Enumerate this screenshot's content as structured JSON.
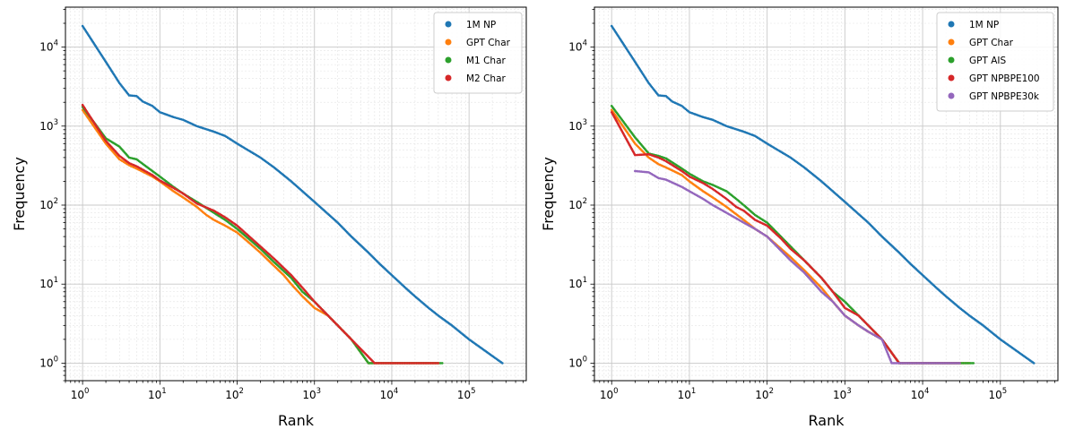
{
  "chart_data": [
    {
      "type": "scatter",
      "xscale": "log",
      "yscale": "log",
      "xlabel": "Rank",
      "ylabel": "Frequency",
      "xlim": [
        0.6,
        550000
      ],
      "ylim": [
        0.6,
        32000
      ],
      "xticks": [
        1,
        10,
        100,
        1000,
        10000,
        100000
      ],
      "xtick_labels": [
        {
          "base": "10",
          "exp": "0"
        },
        {
          "base": "10",
          "exp": "1"
        },
        {
          "base": "10",
          "exp": "2"
        },
        {
          "base": "10",
          "exp": "3"
        },
        {
          "base": "10",
          "exp": "4"
        },
        {
          "base": "10",
          "exp": "5"
        }
      ],
      "yticks": [
        1,
        10,
        100,
        1000,
        10000
      ],
      "ytick_labels": [
        {
          "base": "10",
          "exp": "0"
        },
        {
          "base": "10",
          "exp": "1"
        },
        {
          "base": "10",
          "exp": "2"
        },
        {
          "base": "10",
          "exp": "3"
        },
        {
          "base": "10",
          "exp": "4"
        }
      ],
      "grid": true,
      "legend_position": "top-right",
      "series": [
        {
          "name": "1M NP",
          "color": "#1f77b4",
          "points": [
            [
              1,
              18500
            ],
            [
              2,
              6500
            ],
            [
              3,
              3500
            ],
            [
              4,
              2450
            ],
            [
              5,
              2400
            ],
            [
              6,
              2050
            ],
            [
              8,
              1800
            ],
            [
              10,
              1500
            ],
            [
              15,
              1300
            ],
            [
              20,
              1200
            ],
            [
              30,
              1000
            ],
            [
              50,
              850
            ],
            [
              70,
              750
            ],
            [
              100,
              600
            ],
            [
              200,
              400
            ],
            [
              300,
              300
            ],
            [
              500,
              200
            ],
            [
              1000,
              110
            ],
            [
              2000,
              60
            ],
            [
              3000,
              40
            ],
            [
              5000,
              25
            ],
            [
              7000,
              18
            ],
            [
              10000,
              13
            ],
            [
              15000,
              9
            ],
            [
              20000,
              7
            ],
            [
              30000,
              5
            ],
            [
              40000,
              4
            ],
            [
              60000,
              3
            ],
            [
              100000,
              2
            ],
            [
              270000,
              1
            ]
          ]
        },
        {
          "name": "GPT Char",
          "color": "#ff7f0e",
          "points": [
            [
              1,
              1600
            ],
            [
              2,
              600
            ],
            [
              3,
              380
            ],
            [
              4,
              320
            ],
            [
              5,
              290
            ],
            [
              8,
              230
            ],
            [
              10,
              200
            ],
            [
              15,
              150
            ],
            [
              20,
              125
            ],
            [
              30,
              95
            ],
            [
              40,
              75
            ],
            [
              50,
              65
            ],
            [
              70,
              55
            ],
            [
              100,
              45
            ],
            [
              150,
              32
            ],
            [
              200,
              25
            ],
            [
              300,
              17
            ],
            [
              400,
              13
            ],
            [
              500,
              10
            ],
            [
              700,
              7
            ],
            [
              1000,
              5
            ],
            [
              1500,
              4
            ],
            [
              2000,
              3
            ],
            [
              3000,
              2
            ],
            [
              5000,
              1
            ],
            [
              40000,
              1
            ]
          ]
        },
        {
          "name": "M1 Char",
          "color": "#2ca02c",
          "points": [
            [
              1,
              1750
            ],
            [
              2,
              700
            ],
            [
              3,
              550
            ],
            [
              4,
              400
            ],
            [
              5,
              380
            ],
            [
              8,
              270
            ],
            [
              10,
              230
            ],
            [
              15,
              170
            ],
            [
              20,
              140
            ],
            [
              30,
              110
            ],
            [
              50,
              80
            ],
            [
              70,
              65
            ],
            [
              100,
              50
            ],
            [
              200,
              28
            ],
            [
              300,
              19
            ],
            [
              500,
              12
            ],
            [
              700,
              8
            ],
            [
              1000,
              6
            ],
            [
              1500,
              4
            ],
            [
              2000,
              3
            ],
            [
              3000,
              2
            ],
            [
              5000,
              1
            ],
            [
              45000,
              1
            ]
          ]
        },
        {
          "name": "M2 Char",
          "color": "#d62728",
          "points": [
            [
              1,
              1850
            ],
            [
              2,
              650
            ],
            [
              3,
              420
            ],
            [
              4,
              340
            ],
            [
              5,
              310
            ],
            [
              8,
              240
            ],
            [
              10,
              205
            ],
            [
              15,
              165
            ],
            [
              20,
              140
            ],
            [
              30,
              105
            ],
            [
              50,
              85
            ],
            [
              70,
              70
            ],
            [
              100,
              55
            ],
            [
              200,
              30
            ],
            [
              300,
              21
            ],
            [
              500,
              13
            ],
            [
              700,
              9
            ],
            [
              1000,
              6
            ],
            [
              1500,
              4
            ],
            [
              2000,
              3
            ],
            [
              3000,
              2
            ],
            [
              6000,
              1
            ],
            [
              40000,
              1
            ]
          ]
        }
      ]
    },
    {
      "type": "scatter",
      "xscale": "log",
      "yscale": "log",
      "xlabel": "Rank",
      "ylabel": "Frequency",
      "xlim": [
        0.6,
        550000
      ],
      "ylim": [
        0.6,
        32000
      ],
      "xticks": [
        1,
        10,
        100,
        1000,
        10000,
        100000
      ],
      "xtick_labels": [
        {
          "base": "10",
          "exp": "0"
        },
        {
          "base": "10",
          "exp": "1"
        },
        {
          "base": "10",
          "exp": "2"
        },
        {
          "base": "10",
          "exp": "3"
        },
        {
          "base": "10",
          "exp": "4"
        },
        {
          "base": "10",
          "exp": "5"
        }
      ],
      "yticks": [
        1,
        10,
        100,
        1000,
        10000
      ],
      "ytick_labels": [
        {
          "base": "10",
          "exp": "0"
        },
        {
          "base": "10",
          "exp": "1"
        },
        {
          "base": "10",
          "exp": "2"
        },
        {
          "base": "10",
          "exp": "3"
        },
        {
          "base": "10",
          "exp": "4"
        }
      ],
      "grid": true,
      "legend_position": "top-right",
      "series": [
        {
          "name": "1M NP",
          "color": "#1f77b4",
          "points": [
            [
              1,
              18500
            ],
            [
              2,
              6500
            ],
            [
              3,
              3500
            ],
            [
              4,
              2450
            ],
            [
              5,
              2400
            ],
            [
              6,
              2050
            ],
            [
              8,
              1800
            ],
            [
              10,
              1500
            ],
            [
              15,
              1300
            ],
            [
              20,
              1200
            ],
            [
              30,
              1000
            ],
            [
              50,
              850
            ],
            [
              70,
              750
            ],
            [
              100,
              600
            ],
            [
              200,
              400
            ],
            [
              300,
              300
            ],
            [
              500,
              200
            ],
            [
              1000,
              110
            ],
            [
              2000,
              60
            ],
            [
              3000,
              40
            ],
            [
              5000,
              25
            ],
            [
              7000,
              18
            ],
            [
              10000,
              13
            ],
            [
              15000,
              9
            ],
            [
              20000,
              7
            ],
            [
              30000,
              5
            ],
            [
              40000,
              4
            ],
            [
              60000,
              3
            ],
            [
              100000,
              2
            ],
            [
              270000,
              1
            ]
          ]
        },
        {
          "name": "GPT Char",
          "color": "#ff7f0e",
          "points": [
            [
              1,
              1600
            ],
            [
              2,
              600
            ],
            [
              3,
              400
            ],
            [
              4,
              330
            ],
            [
              5,
              300
            ],
            [
              8,
              240
            ],
            [
              10,
              200
            ],
            [
              15,
              150
            ],
            [
              20,
              125
            ],
            [
              30,
              95
            ],
            [
              50,
              65
            ],
            [
              70,
              50
            ],
            [
              100,
              40
            ],
            [
              200,
              22
            ],
            [
              300,
              15
            ],
            [
              500,
              9
            ],
            [
              700,
              6
            ],
            [
              1000,
              4
            ],
            [
              1500,
              3
            ],
            [
              2000,
              2.5
            ],
            [
              3000,
              2
            ],
            [
              5000,
              1
            ],
            [
              40000,
              1
            ]
          ]
        },
        {
          "name": "GPT AIS",
          "color": "#2ca02c",
          "points": [
            [
              1,
              1800
            ],
            [
              2,
              720
            ],
            [
              3,
              450
            ],
            [
              4,
              420
            ],
            [
              5,
              390
            ],
            [
              8,
              290
            ],
            [
              10,
              250
            ],
            [
              15,
              200
            ],
            [
              20,
              180
            ],
            [
              30,
              150
            ],
            [
              40,
              120
            ],
            [
              50,
              100
            ],
            [
              70,
              75
            ],
            [
              100,
              60
            ],
            [
              150,
              40
            ],
            [
              200,
              30
            ],
            [
              300,
              20
            ],
            [
              500,
              12
            ],
            [
              700,
              8
            ],
            [
              1000,
              6
            ],
            [
              1500,
              4
            ],
            [
              2000,
              3
            ],
            [
              3000,
              2
            ],
            [
              5000,
              1
            ],
            [
              45000,
              1
            ]
          ]
        },
        {
          "name": "GPT NPBPE100",
          "color": "#d62728",
          "points": [
            [
              1,
              1500
            ],
            [
              2,
              430
            ],
            [
              3,
              440
            ],
            [
              4,
              400
            ],
            [
              5,
              360
            ],
            [
              8,
              270
            ],
            [
              10,
              230
            ],
            [
              15,
              190
            ],
            [
              20,
              160
            ],
            [
              30,
              120
            ],
            [
              40,
              95
            ],
            [
              50,
              85
            ],
            [
              70,
              65
            ],
            [
              100,
              55
            ],
            [
              150,
              38
            ],
            [
              200,
              28
            ],
            [
              300,
              20
            ],
            [
              500,
              12
            ],
            [
              700,
              8
            ],
            [
              1000,
              5
            ],
            [
              1500,
              4
            ],
            [
              2000,
              3
            ],
            [
              3000,
              2
            ],
            [
              5000,
              1
            ],
            [
              30000,
              1
            ]
          ]
        },
        {
          "name": "GPT NPBPE30k",
          "color": "#9467bd",
          "points": [
            [
              2,
              270
            ],
            [
              3,
              260
            ],
            [
              4,
              220
            ],
            [
              5,
              210
            ],
            [
              8,
              170
            ],
            [
              10,
              150
            ],
            [
              15,
              120
            ],
            [
              20,
              100
            ],
            [
              30,
              80
            ],
            [
              50,
              60
            ],
            [
              70,
              50
            ],
            [
              100,
              40
            ],
            [
              200,
              20
            ],
            [
              300,
              14
            ],
            [
              500,
              8
            ],
            [
              700,
              6
            ],
            [
              1000,
              4
            ],
            [
              1500,
              3
            ],
            [
              2000,
              2.5
            ],
            [
              3000,
              2
            ],
            [
              4000,
              1
            ],
            [
              30000,
              1
            ]
          ]
        }
      ]
    }
  ]
}
